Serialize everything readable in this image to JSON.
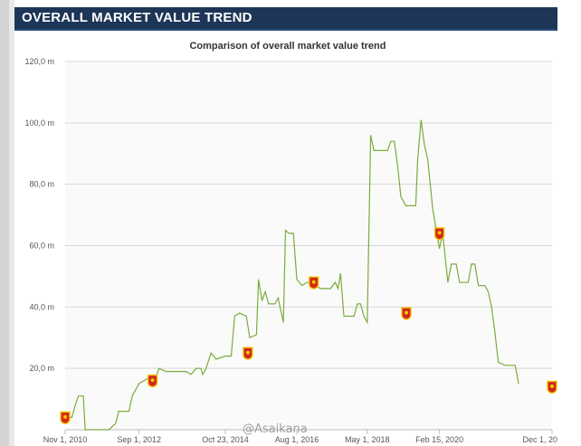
{
  "header": {
    "title": "OVERALL MARKET VALUE TREND"
  },
  "watermark": {
    "text": "@Asaikana"
  },
  "chart_data": {
    "type": "line",
    "title": "Comparison of overall market value trend",
    "xlabel": "",
    "ylabel": "",
    "y_unit": "m",
    "ylim": [
      0,
      120
    ],
    "y_ticks": [
      {
        "value": 20,
        "label": "20,0 m"
      },
      {
        "value": 40,
        "label": "40,0 m"
      },
      {
        "value": 60,
        "label": "60,0 m"
      },
      {
        "value": 80,
        "label": "80,0 m"
      },
      {
        "value": 100,
        "label": "100,0 m"
      },
      {
        "value": 120,
        "label": "120,0 m"
      }
    ],
    "x_range": [
      "2010-11-01",
      "2022-12-01"
    ],
    "x_ticks": [
      {
        "date": "2010-11-01",
        "label": "Nov 1, 2010"
      },
      {
        "date": "2012-09-01",
        "label": "Sep 1, 2012"
      },
      {
        "date": "2014-10-23",
        "label": "Oct 23, 2014"
      },
      {
        "date": "2016-08-01",
        "label": "Aug 1, 2016"
      },
      {
        "date": "2018-05-01",
        "label": "May 1, 2018"
      },
      {
        "date": "2020-02-15",
        "label": "Feb 15, 2020"
      },
      {
        "date": "2022-12-01",
        "label": "Dec 1, 20"
      }
    ],
    "grid": true,
    "line_color": "#7aab3c",
    "marker_color": "#d0281c",
    "series": [
      {
        "points": [
          [
            "2010-11-01",
            4
          ],
          [
            "2011-01-01",
            4
          ],
          [
            "2011-02-01",
            8
          ],
          [
            "2011-03-01",
            11
          ],
          [
            "2011-04-15",
            11
          ],
          [
            "2011-05-01",
            0
          ],
          [
            "2011-12-01",
            0
          ],
          [
            "2012-01-01",
            1
          ],
          [
            "2012-02-01",
            2
          ],
          [
            "2012-03-01",
            6
          ],
          [
            "2012-06-01",
            6
          ],
          [
            "2012-07-01",
            11
          ],
          [
            "2012-09-01",
            15
          ],
          [
            "2012-12-01",
            17
          ],
          [
            "2013-02-01",
            17
          ],
          [
            "2013-03-01",
            20
          ],
          [
            "2013-05-01",
            19
          ],
          [
            "2013-07-01",
            19
          ],
          [
            "2013-09-01",
            19
          ],
          [
            "2013-11-01",
            19
          ],
          [
            "2013-12-15",
            18
          ],
          [
            "2014-02-01",
            20
          ],
          [
            "2014-03-15",
            20
          ],
          [
            "2014-04-01",
            18
          ],
          [
            "2014-05-01",
            20
          ],
          [
            "2014-06-15",
            25
          ],
          [
            "2014-08-01",
            23
          ],
          [
            "2014-10-23",
            24
          ],
          [
            "2014-12-15",
            24
          ],
          [
            "2015-01-15",
            37
          ],
          [
            "2015-03-01",
            38
          ],
          [
            "2015-05-01",
            37
          ],
          [
            "2015-06-01",
            30
          ],
          [
            "2015-08-01",
            31
          ],
          [
            "2015-08-20",
            49
          ],
          [
            "2015-09-20",
            42
          ],
          [
            "2015-10-20",
            45
          ],
          [
            "2015-11-20",
            41
          ],
          [
            "2016-01-15",
            41
          ],
          [
            "2016-02-15",
            43
          ],
          [
            "2016-03-01",
            40
          ],
          [
            "2016-04-01",
            35
          ],
          [
            "2016-04-20",
            65
          ],
          [
            "2016-05-20",
            64
          ],
          [
            "2016-07-01",
            64
          ],
          [
            "2016-08-01",
            49
          ],
          [
            "2016-09-15",
            47
          ],
          [
            "2016-11-01",
            48
          ],
          [
            "2016-12-15",
            48
          ],
          [
            "2017-03-01",
            46
          ],
          [
            "2017-06-01",
            46
          ],
          [
            "2017-07-15",
            48
          ],
          [
            "2017-08-10",
            46
          ],
          [
            "2017-09-01",
            51
          ],
          [
            "2017-10-01",
            37
          ],
          [
            "2017-12-01",
            37
          ],
          [
            "2018-01-01",
            37
          ],
          [
            "2018-02-01",
            41
          ],
          [
            "2018-03-01",
            41
          ],
          [
            "2018-04-01",
            37
          ],
          [
            "2018-05-01",
            35
          ],
          [
            "2018-06-01",
            96
          ],
          [
            "2018-07-01",
            91
          ],
          [
            "2018-09-01",
            91
          ],
          [
            "2018-11-01",
            91
          ],
          [
            "2018-12-01",
            94
          ],
          [
            "2019-01-01",
            94
          ],
          [
            "2019-02-01",
            86
          ],
          [
            "2019-03-01",
            76
          ],
          [
            "2019-04-15",
            73
          ],
          [
            "2019-06-01",
            73
          ],
          [
            "2019-07-15",
            73
          ],
          [
            "2019-08-01",
            88
          ],
          [
            "2019-09-01",
            101
          ],
          [
            "2019-10-01",
            93
          ],
          [
            "2019-11-01",
            88
          ],
          [
            "2019-12-15",
            72
          ],
          [
            "2020-02-15",
            59
          ],
          [
            "2020-03-15",
            64
          ],
          [
            "2020-05-01",
            48
          ],
          [
            "2020-06-01",
            54
          ],
          [
            "2020-07-15",
            54
          ],
          [
            "2020-08-15",
            48
          ],
          [
            "2020-10-01",
            48
          ],
          [
            "2020-11-01",
            48
          ],
          [
            "2020-12-01",
            54
          ],
          [
            "2021-01-01",
            54
          ],
          [
            "2021-02-01",
            47
          ],
          [
            "2021-04-01",
            47
          ],
          [
            "2021-05-01",
            45
          ],
          [
            "2021-06-01",
            40
          ],
          [
            "2021-07-01",
            32
          ],
          [
            "2021-08-01",
            22
          ],
          [
            "2021-10-01",
            21
          ],
          [
            "2021-12-01",
            21
          ],
          [
            "2022-01-01",
            21
          ],
          [
            "2022-02-01",
            15
          ]
        ]
      }
    ],
    "markers": [
      {
        "date": "2010-11-01",
        "value": 4
      },
      {
        "date": "2013-01-01",
        "value": 16
      },
      {
        "date": "2015-05-15",
        "value": 25
      },
      {
        "date": "2017-01-01",
        "value": 48
      },
      {
        "date": "2019-04-20",
        "value": 38
      },
      {
        "date": "2020-02-15",
        "value": 64
      },
      {
        "date": "2022-12-01",
        "value": 14
      }
    ]
  }
}
